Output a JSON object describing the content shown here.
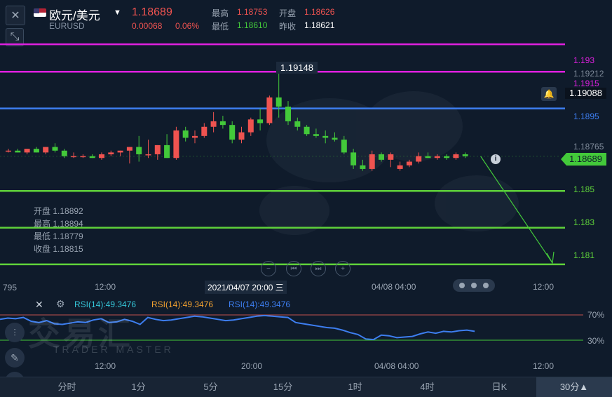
{
  "header": {
    "close_icon": "close-icon",
    "collapse_icon": "compress-icon",
    "symbol_name": "欧元/美元",
    "symbol_code": "EURUSD",
    "last_price": "1.18689",
    "change": "0.00068",
    "change_pct": "0.06%",
    "high_label": "最高",
    "high_value": "1.18753",
    "open_label": "开盘",
    "open_value": "1.18626",
    "low_label": "最低",
    "low_value": "1.18610",
    "prev_close_label": "昨收",
    "prev_close_value": "1.18621"
  },
  "price_axis": {
    "labels": [
      "1.193",
      "1.19212",
      "1.1915",
      "1.19088",
      "1.1895",
      "1.18765",
      "1.18689",
      "1.185",
      "1.183",
      "1.181"
    ],
    "line_colors": {
      "magenta": "#e020e0",
      "blue": "#3d7ef0",
      "green": "#5fd23a"
    }
  },
  "peak_label": "1.19148",
  "ohlc_info": {
    "open": "开盘 1.18892",
    "high": "最高 1.18894",
    "low": "最低 1.18779",
    "close": "收盘 1.18815"
  },
  "time_axis": {
    "left_value": "795",
    "labels": [
      "12:00",
      "2021/04/07 20:00 三",
      "04/08 04:00",
      "12:00"
    ]
  },
  "rsi": {
    "label1": "RSI(14):49.3476",
    "label2": "RSI(14):49.3476",
    "label3": "RSI(14):49.3476",
    "level_high": "70%",
    "level_low": "30%",
    "time_labels": [
      "12:00",
      "20:00",
      "04/08 04:00",
      "12:00"
    ]
  },
  "watermark": {
    "cn": "交易汇",
    "en": "TRADER MASTER"
  },
  "tabs": [
    "分时",
    "1分",
    "5分",
    "15分",
    "1时",
    "4时",
    "日K",
    "30分▲"
  ],
  "chart_data": {
    "type": "candlestick",
    "symbol": "EURUSD",
    "timeframe": "30分",
    "ylim": [
      1.1805,
      1.1935
    ],
    "horizontal_lines": [
      1.193,
      1.1915,
      1.1895,
      1.185,
      1.183,
      1.181
    ],
    "candles": [
      [
        1.1872,
        1.1873,
        1.1871,
        1.1872
      ],
      [
        1.1872,
        1.1873,
        1.1871,
        1.1871
      ],
      [
        1.1871,
        1.1873,
        1.187,
        1.1873
      ],
      [
        1.1873,
        1.1874,
        1.1871,
        1.1871
      ],
      [
        1.1871,
        1.1874,
        1.187,
        1.1874
      ],
      [
        1.1874,
        1.1876,
        1.1871,
        1.1872
      ],
      [
        1.1872,
        1.1873,
        1.1868,
        1.1869
      ],
      [
        1.1869,
        1.1871,
        1.1868,
        1.1869
      ],
      [
        1.1869,
        1.187,
        1.1868,
        1.1869
      ],
      [
        1.1869,
        1.187,
        1.1868,
        1.1868
      ],
      [
        1.1868,
        1.1871,
        1.1867,
        1.187
      ],
      [
        1.187,
        1.1872,
        1.1869,
        1.1871
      ],
      [
        1.1871,
        1.1872,
        1.1869,
        1.1872
      ],
      [
        1.1872,
        1.1874,
        1.1865,
        1.1874
      ],
      [
        1.1874,
        1.188,
        1.1866,
        1.187
      ],
      [
        1.187,
        1.1878,
        1.1868,
        1.187
      ],
      [
        1.187,
        1.1875,
        1.1867,
        1.1875
      ],
      [
        1.1875,
        1.1881,
        1.1868,
        1.1868
      ],
      [
        1.1868,
        1.1885,
        1.1867,
        1.1883
      ],
      [
        1.1883,
        1.1885,
        1.1877,
        1.1879
      ],
      [
        1.1879,
        1.1883,
        1.1876,
        1.188
      ],
      [
        1.188,
        1.1887,
        1.1879,
        1.1885
      ],
      [
        1.1885,
        1.1893,
        1.1882,
        1.1888
      ],
      [
        1.1888,
        1.1891,
        1.1884,
        1.1886
      ],
      [
        1.1886,
        1.1888,
        1.1876,
        1.1878
      ],
      [
        1.1878,
        1.1885,
        1.1876,
        1.1882
      ],
      [
        1.1882,
        1.189,
        1.188,
        1.1889
      ],
      [
        1.1889,
        1.1895,
        1.1883,
        1.1887
      ],
      [
        1.1887,
        1.1902,
        1.1886,
        1.1901
      ],
      [
        1.1901,
        1.1915,
        1.189,
        1.1896
      ],
      [
        1.1896,
        1.1899,
        1.1886,
        1.1888
      ],
      [
        1.1888,
        1.189,
        1.1883,
        1.1885
      ],
      [
        1.1885,
        1.1886,
        1.188,
        1.1881
      ],
      [
        1.1881,
        1.1884,
        1.1879,
        1.188
      ],
      [
        1.188,
        1.1883,
        1.1876,
        1.1879
      ],
      [
        1.1879,
        1.1882,
        1.1877,
        1.1878
      ],
      [
        1.1878,
        1.188,
        1.187,
        1.1871
      ],
      [
        1.1871,
        1.1873,
        1.1862,
        1.1864
      ],
      [
        1.1864,
        1.1867,
        1.1861,
        1.1862
      ],
      [
        1.1862,
        1.1872,
        1.1861,
        1.187
      ],
      [
        1.187,
        1.1871,
        1.1866,
        1.1867
      ],
      [
        1.1867,
        1.1871,
        1.1863,
        1.187
      ],
      [
        1.1862,
        1.1866,
        1.1861,
        1.1864
      ],
      [
        1.1864,
        1.1867,
        1.1863,
        1.1866
      ],
      [
        1.1866,
        1.1871,
        1.1865,
        1.1869
      ],
      [
        1.1869,
        1.1871,
        1.1868,
        1.1868
      ],
      [
        1.1868,
        1.187,
        1.1867,
        1.1869
      ],
      [
        1.1869,
        1.187,
        1.1867,
        1.1868
      ],
      [
        1.1868,
        1.1871,
        1.1867,
        1.187
      ],
      [
        1.187,
        1.1871,
        1.1868,
        1.1869
      ]
    ],
    "peak": 1.19148,
    "last": 1.18689,
    "rsi_series": [
      63,
      65,
      64,
      66,
      60,
      58,
      61,
      56,
      55,
      57,
      59,
      58,
      62,
      64,
      58,
      59,
      63,
      60,
      55,
      66,
      63,
      61,
      62,
      64,
      66,
      68,
      67,
      65,
      63,
      61,
      62,
      64,
      66,
      68,
      69,
      68,
      67,
      66,
      58,
      56,
      54,
      52,
      50,
      49,
      46,
      42,
      39,
      32,
      31,
      38,
      37,
      34,
      35,
      36,
      40,
      43,
      41,
      44,
      43,
      45,
      46,
      44
    ],
    "rsi_levels": [
      70,
      30
    ]
  }
}
